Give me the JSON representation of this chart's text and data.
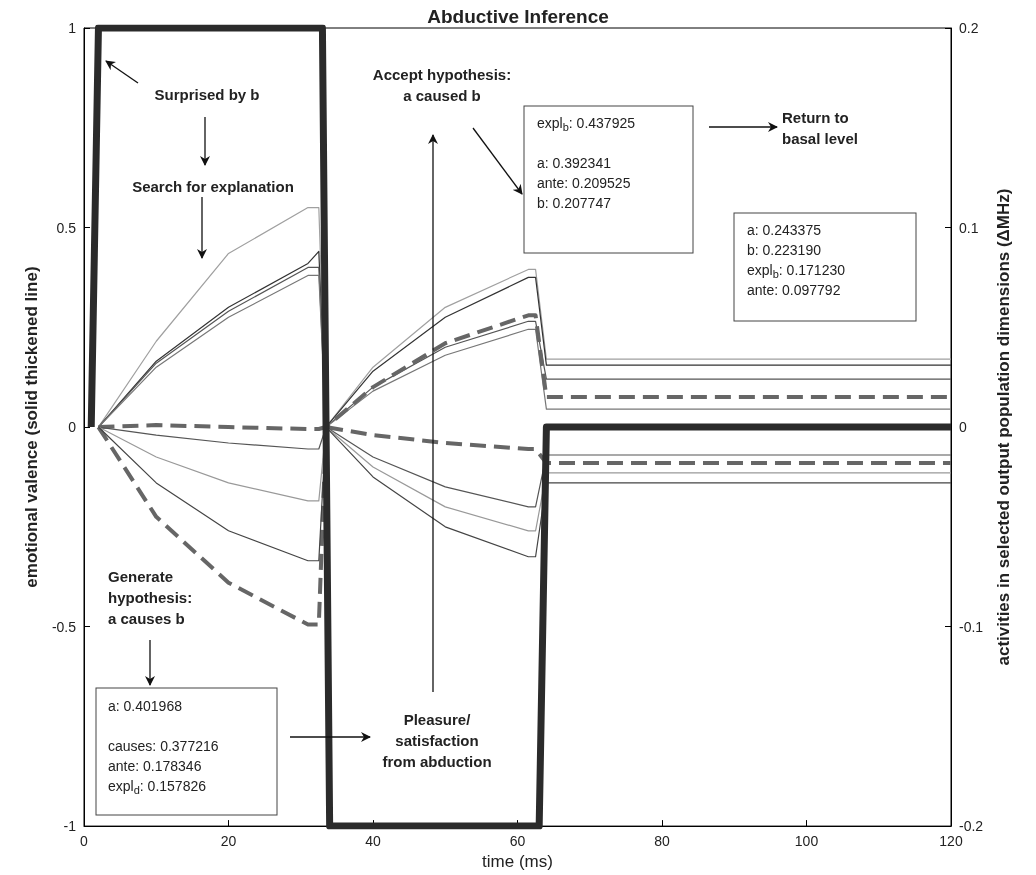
{
  "chart_data": {
    "type": "line",
    "title": "Abductive Inference",
    "xlabel": "time (ms)",
    "ylabel": "emotional valence (solid thickened line)",
    "y2label": "activities in selected output population dimensions (ΔMHz)",
    "xlim": [
      0,
      120
    ],
    "xticks": [
      0,
      20,
      40,
      60,
      80,
      100,
      120
    ],
    "ylim": [
      -1,
      1
    ],
    "yticks": [
      -1,
      -0.5,
      0,
      0.5,
      1
    ],
    "y2lim": [
      -0.2,
      0.2
    ],
    "y2ticks": [
      -0.2,
      -0.1,
      0,
      0.1,
      0.2
    ],
    "grid": false,
    "series": [
      {
        "color": "#2b2b2b",
        "x": [
          1,
          2,
          33,
          34,
          63,
          64,
          120
        ],
        "values": [
          0,
          1,
          1,
          -1,
          -1,
          0,
          0
        ]
      },
      {
        "color": "#a0a0a0",
        "axis": "y2",
        "x": [
          2,
          10,
          20,
          31,
          32.5,
          33.5,
          40,
          50,
          61.5,
          62.5,
          64,
          120
        ],
        "values": [
          0,
          0.043,
          0.087,
          0.11,
          0.11,
          0,
          0.03,
          0.06,
          0.079,
          0.079,
          0.034,
          0.034
        ]
      },
      {
        "color": "#333333",
        "axis": "y2",
        "x": [
          2,
          10,
          20,
          31,
          32.5,
          33.5,
          40,
          50,
          61.5,
          62.5,
          64,
          120
        ],
        "values": [
          0,
          0.033,
          0.06,
          0.082,
          0.088,
          0,
          0.028,
          0.055,
          0.075,
          0.075,
          0.031,
          0.031
        ]
      },
      {
        "color": "#555555",
        "axis": "y2",
        "x": [
          2,
          10,
          20,
          31,
          32.5,
          33.5,
          40,
          50,
          61.5,
          62.5,
          64,
          120
        ],
        "values": [
          0,
          0.032,
          0.058,
          0.08,
          0.08,
          0,
          0.02,
          0.04,
          0.053,
          0.053,
          0.024,
          0.024
        ]
      },
      {
        "color": "#777777",
        "axis": "y2",
        "x": [
          2,
          10,
          20,
          31,
          32.5,
          33.5,
          40,
          50,
          61.5,
          62.5,
          64,
          120
        ],
        "values": [
          0,
          0.03,
          0.055,
          0.076,
          0.076,
          0,
          0.018,
          0.036,
          0.049,
          0.049,
          0.009,
          0.009
        ]
      },
      {
        "color": "#666666",
        "axis": "y2",
        "line_style": "dashed",
        "x": [
          2,
          10,
          20,
          31,
          32.5,
          33.5,
          40,
          50,
          61.5,
          62.5,
          64,
          120
        ],
        "values": [
          0,
          0.001,
          0,
          -0.001,
          -0.001,
          0,
          0.02,
          0.042,
          0.056,
          0.056,
          0.015,
          0.015
        ]
      },
      {
        "color": "#666666",
        "axis": "y2",
        "line_style": "dashed",
        "x": [
          2,
          10,
          20,
          31,
          32.5,
          33.5,
          40,
          50,
          61.5,
          62.5,
          64,
          120
        ],
        "values": [
          0,
          -0.045,
          -0.078,
          -0.099,
          -0.099,
          0,
          -0.004,
          -0.008,
          -0.011,
          -0.011,
          -0.018,
          -0.018
        ]
      },
      {
        "color": "#555555",
        "axis": "y2",
        "x": [
          2,
          10,
          20,
          31,
          32.5,
          33.5,
          40,
          50,
          61.5,
          62.5,
          64,
          120
        ],
        "values": [
          0,
          -0.004,
          -0.008,
          -0.011,
          -0.011,
          0,
          -0.015,
          -0.03,
          -0.04,
          -0.04,
          -0.014,
          -0.014
        ]
      },
      {
        "color": "#999999",
        "axis": "y2",
        "x": [
          2,
          10,
          20,
          31,
          32.5,
          33.5,
          40,
          50,
          61.5,
          62.5,
          64,
          120
        ],
        "values": [
          0,
          -0.015,
          -0.028,
          -0.037,
          -0.037,
          0,
          -0.02,
          -0.04,
          -0.052,
          -0.052,
          -0.023,
          -0.023
        ]
      },
      {
        "color": "#444444",
        "axis": "y2",
        "x": [
          2,
          10,
          20,
          31,
          32.5,
          33.5,
          40,
          50,
          61.5,
          62.5,
          64,
          120
        ],
        "values": [
          0,
          -0.028,
          -0.052,
          -0.067,
          -0.067,
          0,
          -0.025,
          -0.05,
          -0.065,
          -0.065,
          -0.028,
          -0.028
        ]
      }
    ],
    "annotations": [
      "Surprised by b",
      "Search for explanation",
      "Accept hypothesis:\na caused b",
      "expl$_{b}$: 0.437925\n\na:  0.392341\nante:  0.209525\nb:  0.207747",
      "Return to\nbasal level",
      "a:  0.243375\nb:  0.223190\nexpl$_{b}$: 0.171230\nante:  0.097792",
      "Generate\nhypothesis:\na causes b",
      "a: 0.401968\n\ncauses: 0.377216\nante: 0.178346\nexpl$_{d}$: 0.157826",
      "Pleasure/\nsatisfaction\nfrom abduction"
    ]
  }
}
